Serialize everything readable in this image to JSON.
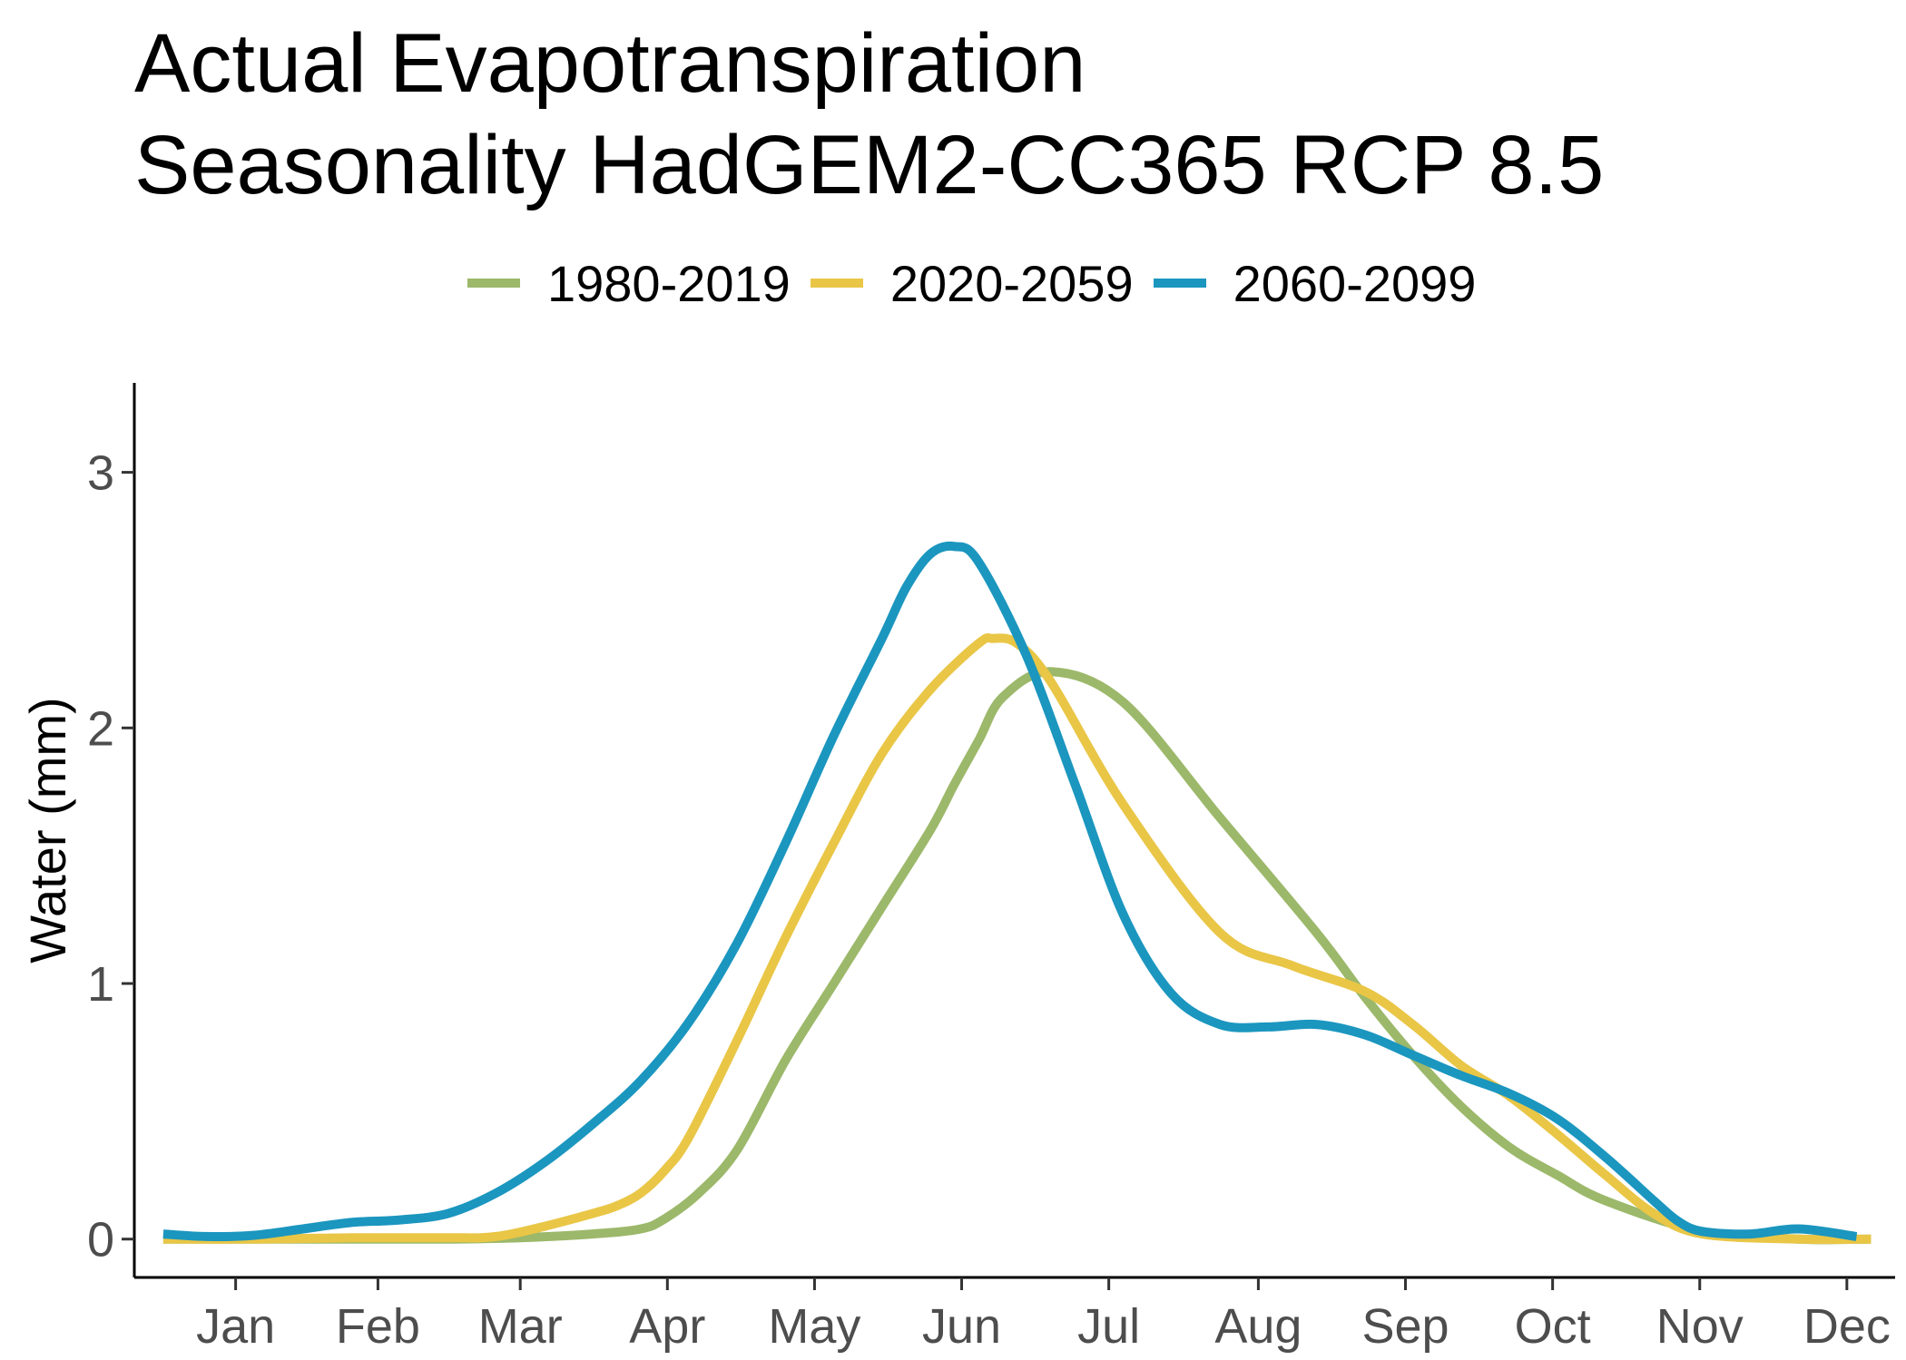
{
  "chart_data": {
    "type": "line",
    "title": [
      "Actual Evapotranspiration",
      "Seasonality HadGEM2-CC365 RCP 8.5"
    ],
    "xlabel": "",
    "ylabel": "Water (mm)",
    "x_ticks": [
      "Jan",
      "Feb",
      "Mar",
      "Apr",
      "May",
      "Jun",
      "Jul",
      "Aug",
      "Sep",
      "Oct",
      "Nov",
      "Dec"
    ],
    "y_ticks": [
      0,
      1,
      2,
      3
    ],
    "xlim": [
      -5,
      360
    ],
    "ylim": [
      -0.15,
      3.35
    ],
    "x_units": "day of year (month ticks at mid-month)",
    "grid": false,
    "legend_position": "top",
    "series": [
      {
        "name": "1980-2019",
        "color": "#9cb86a",
        "x": [
          1,
          20,
          40,
          60,
          75,
          90,
          100,
          105,
          112,
          120,
          130,
          140,
          150,
          160,
          165,
          170,
          175,
          185,
          200,
          220,
          240,
          250,
          260,
          270,
          280,
          290,
          300,
          320,
          340,
          355
        ],
        "y": [
          0.0,
          0.0,
          0.0,
          0.0,
          0.005,
          0.02,
          0.04,
          0.08,
          0.18,
          0.35,
          0.7,
          1.0,
          1.3,
          1.6,
          1.78,
          1.95,
          2.12,
          2.22,
          2.1,
          1.65,
          1.2,
          0.95,
          0.72,
          0.52,
          0.36,
          0.25,
          0.15,
          0.03,
          0.0,
          0.0
        ]
      },
      {
        "name": "2020-2059",
        "color": "#e9c646",
        "x": [
          1,
          20,
          40,
          60,
          70,
          80,
          90,
          95,
          100,
          105,
          110,
          120,
          130,
          140,
          150,
          160,
          170,
          173,
          178,
          185,
          200,
          220,
          235,
          250,
          260,
          270,
          280,
          290,
          300,
          310,
          320,
          340,
          355
        ],
        "y": [
          0.0,
          0.0,
          0.005,
          0.005,
          0.01,
          0.05,
          0.1,
          0.13,
          0.18,
          0.27,
          0.4,
          0.78,
          1.18,
          1.55,
          1.9,
          2.15,
          2.33,
          2.35,
          2.33,
          2.18,
          1.7,
          1.2,
          1.07,
          0.97,
          0.84,
          0.68,
          0.56,
          0.41,
          0.25,
          0.1,
          0.02,
          0.0,
          0.0
        ]
      },
      {
        "name": "2060-2099",
        "color": "#1b96bf",
        "x": [
          1,
          10,
          20,
          30,
          40,
          50,
          60,
          70,
          80,
          90,
          100,
          110,
          120,
          130,
          140,
          150,
          155,
          160,
          165,
          170,
          180,
          190,
          200,
          210,
          220,
          230,
          240,
          250,
          260,
          270,
          280,
          290,
          300,
          310,
          315,
          320,
          330,
          340,
          352
        ],
        "y": [
          0.02,
          0.01,
          0.015,
          0.04,
          0.065,
          0.075,
          0.1,
          0.18,
          0.3,
          0.45,
          0.62,
          0.85,
          1.16,
          1.55,
          1.97,
          2.35,
          2.55,
          2.68,
          2.71,
          2.65,
          2.28,
          1.78,
          1.27,
          0.96,
          0.84,
          0.83,
          0.84,
          0.8,
          0.72,
          0.64,
          0.57,
          0.47,
          0.32,
          0.15,
          0.07,
          0.03,
          0.02,
          0.04,
          0.01
        ]
      }
    ]
  }
}
